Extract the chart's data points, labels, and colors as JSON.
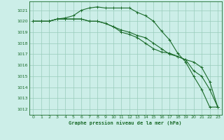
{
  "background_color": "#cceee8",
  "grid_color": "#99ccbb",
  "line_color": "#1a6b2a",
  "xlabel": "Graphe pression niveau de la mer (hPa)",
  "xlim": [
    -0.5,
    23.5
  ],
  "ylim": [
    1011.5,
    1021.8
  ],
  "yticks": [
    1012,
    1013,
    1014,
    1015,
    1016,
    1017,
    1018,
    1019,
    1020,
    1021
  ],
  "xticks": [
    0,
    1,
    2,
    3,
    4,
    5,
    6,
    7,
    8,
    9,
    10,
    11,
    12,
    13,
    14,
    15,
    16,
    17,
    18,
    19,
    20,
    21,
    22,
    23
  ],
  "series": [
    [
      1020.0,
      1020.0,
      1020.0,
      1020.2,
      1020.3,
      1020.5,
      1021.0,
      1021.2,
      1021.3,
      1021.2,
      1021.2,
      1021.2,
      1021.2,
      1020.8,
      1020.5,
      1020.0,
      1019.1,
      1018.3,
      1017.1,
      1016.3,
      1015.0,
      1013.8,
      1012.2,
      1012.2
    ],
    [
      1020.0,
      1020.0,
      1020.0,
      1020.2,
      1020.2,
      1020.2,
      1020.2,
      1020.0,
      1020.0,
      1019.8,
      1019.5,
      1019.2,
      1019.0,
      1018.7,
      1018.5,
      1018.0,
      1017.5,
      1017.0,
      1016.8,
      1016.5,
      1015.5,
      1015.0,
      1013.8,
      1012.2
    ],
    [
      1020.0,
      1020.0,
      1020.0,
      1020.2,
      1020.2,
      1020.2,
      1020.2,
      1020.0,
      1020.0,
      1019.8,
      1019.5,
      1019.0,
      1018.8,
      1018.5,
      1018.0,
      1017.5,
      1017.2,
      1017.1,
      1016.8,
      1016.5,
      1016.3,
      1015.8,
      1014.5,
      1012.2
    ]
  ],
  "linewidth": 0.8,
  "markersize": 3.0
}
